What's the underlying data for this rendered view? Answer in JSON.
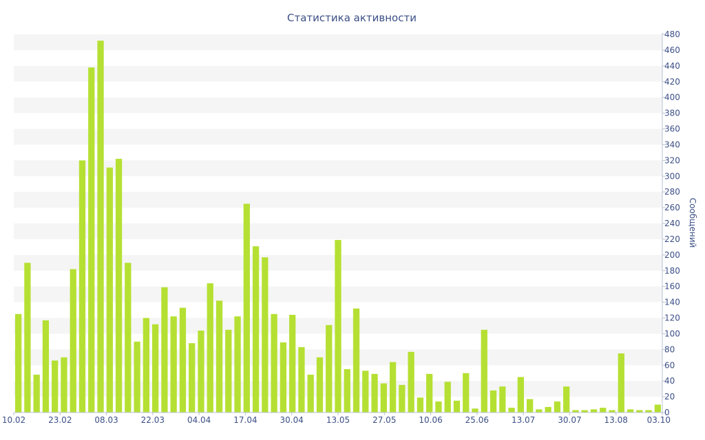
{
  "chart_data": {
    "type": "bar",
    "title": "Статистика активности",
    "xlabel": "",
    "ylabel": "Сообщений",
    "y_axis_side": "right",
    "ylim": [
      0,
      480
    ],
    "y_ticks": [
      0,
      20,
      40,
      60,
      80,
      100,
      120,
      140,
      160,
      180,
      200,
      220,
      240,
      260,
      280,
      300,
      320,
      340,
      360,
      380,
      400,
      420,
      440,
      460,
      480
    ],
    "x_tick_labels": [
      "10.02",
      "23.02",
      "08.03",
      "22.03",
      "04.04",
      "17.04",
      "30.04",
      "13.05",
      "27.05",
      "10.06",
      "25.06",
      "13.07",
      "30.07",
      "13.08",
      "03.10"
    ],
    "grid": "horizontal alternating bands",
    "bar_color": "#b5e033",
    "values": [
      125,
      190,
      48,
      117,
      66,
      70,
      182,
      320,
      438,
      472,
      311,
      322,
      190,
      90,
      120,
      112,
      159,
      122,
      133,
      88,
      104,
      164,
      142,
      105,
      122,
      265,
      211,
      197,
      125,
      89,
      124,
      83,
      48,
      70,
      111,
      219,
      55,
      132,
      53,
      49,
      37,
      64,
      35,
      77,
      19,
      49,
      14,
      39,
      15,
      50,
      5,
      105,
      28,
      33,
      6,
      45,
      17,
      4,
      7,
      14,
      33,
      3,
      3,
      4,
      6,
      3,
      75,
      4,
      3,
      3,
      10
    ]
  }
}
